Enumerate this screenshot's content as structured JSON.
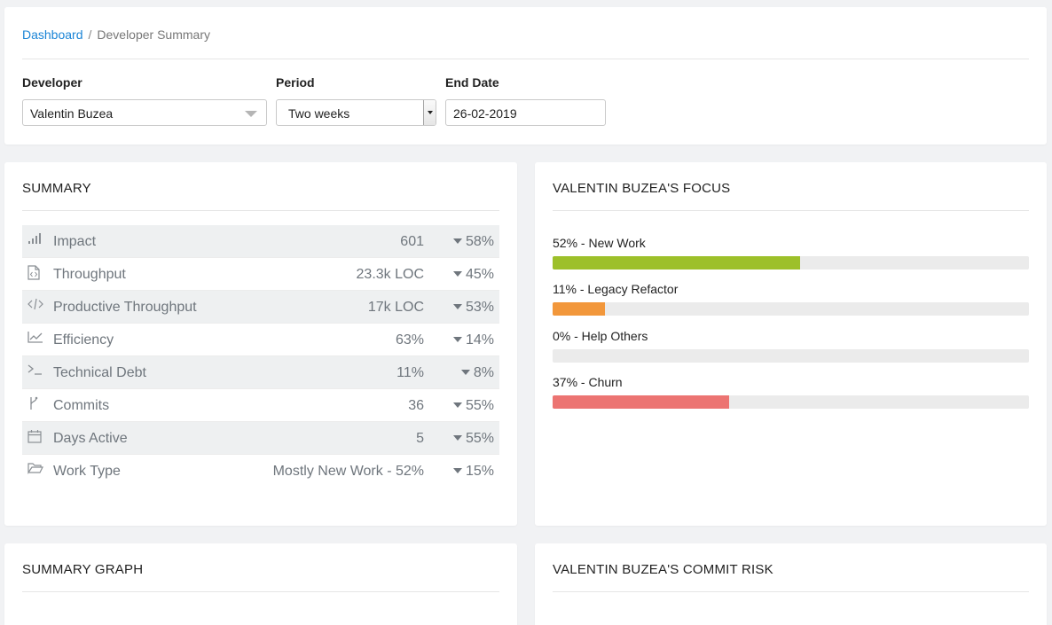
{
  "breadcrumb": {
    "root": "Dashboard",
    "separator": "/",
    "current": "Developer Summary"
  },
  "filters": {
    "developer_label": "Developer",
    "developer_value": "Valentin Buzea",
    "period_label": "Period",
    "period_value": "Two weeks",
    "end_date_label": "End Date",
    "end_date_value": "26-02-2019"
  },
  "summary": {
    "title": "SUMMARY",
    "rows": [
      {
        "icon": "signal-bars-icon",
        "label": "Impact",
        "value": "601",
        "delta": "58%"
      },
      {
        "icon": "code-file-icon",
        "label": "Throughput",
        "value": "23.3k LOC",
        "delta": "45%"
      },
      {
        "icon": "code-brackets-icon",
        "label": "Productive Throughput",
        "value": "17k LOC",
        "delta": "53%"
      },
      {
        "icon": "line-chart-icon",
        "label": "Efficiency",
        "value": "63%",
        "delta": "14%"
      },
      {
        "icon": "terminal-icon",
        "label": "Technical Debt",
        "value": "11%",
        "delta": "8%"
      },
      {
        "icon": "git-branch-icon",
        "label": "Commits",
        "value": "36",
        "delta": "55%"
      },
      {
        "icon": "calendar-icon",
        "label": "Days Active",
        "value": "5",
        "delta": "55%"
      },
      {
        "icon": "folder-icon",
        "label": "Work Type",
        "value": "Mostly New Work - 52%",
        "delta": "15%"
      }
    ]
  },
  "focus": {
    "title": "VALENTIN BUZEA'S FOCUS",
    "items": [
      {
        "label": "52% - New Work",
        "percent": 52,
        "color": "#9dc02a"
      },
      {
        "label": "11% - Legacy Refactor",
        "percent": 11,
        "color": "#f2973b"
      },
      {
        "label": "0% - Help Others",
        "percent": 0,
        "color": "#5fb0e6"
      },
      {
        "label": "37% - Churn",
        "percent": 37,
        "color": "#ec7472"
      }
    ]
  },
  "graph": {
    "title": "SUMMARY GRAPH"
  },
  "risk": {
    "title": "VALENTIN BUZEA'S COMMIT RISK"
  },
  "colors": {
    "link": "#1a84d6",
    "background": "#f1f2f4"
  }
}
